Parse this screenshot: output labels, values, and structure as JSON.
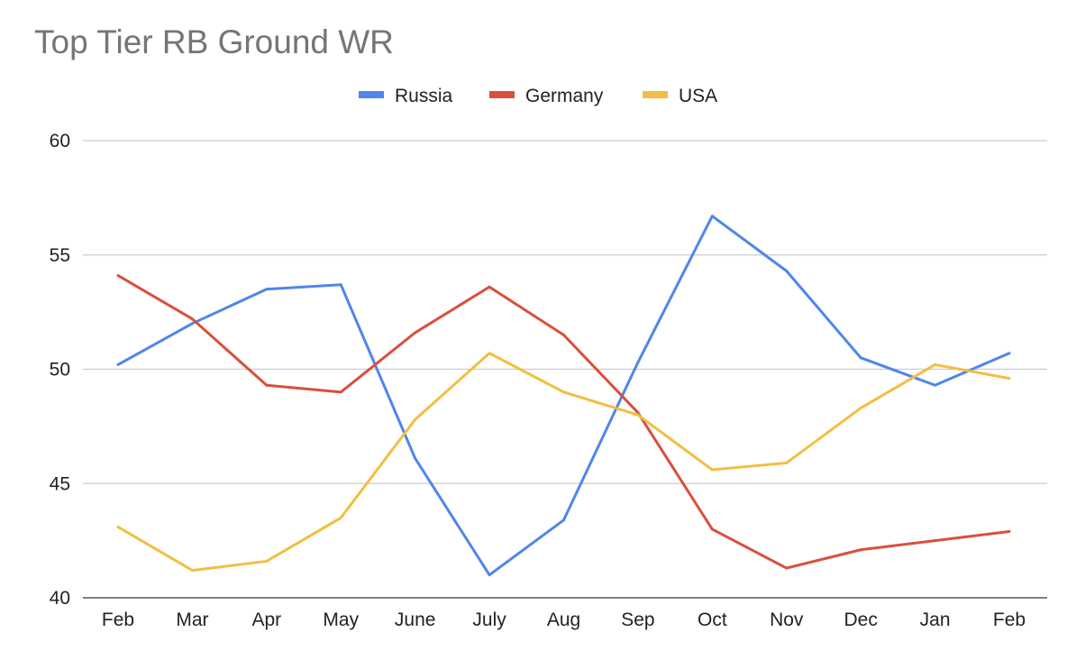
{
  "chart_data": {
    "type": "line",
    "title": "Top Tier RB Ground WR",
    "xlabel": "",
    "ylabel": "",
    "categories": [
      "Feb",
      "Mar",
      "Apr",
      "May",
      "June",
      "July",
      "Aug",
      "Sep",
      "Oct",
      "Nov",
      "Dec",
      "Jan",
      "Feb"
    ],
    "ylim": [
      40,
      60
    ],
    "yticks": [
      40,
      45,
      50,
      55,
      60
    ],
    "grid": true,
    "legend_position": "top",
    "series": [
      {
        "name": "Russia",
        "color": "#4f86ec",
        "values": [
          50.2,
          52.0,
          53.5,
          53.7,
          46.1,
          41.0,
          43.4,
          50.3,
          56.7,
          54.3,
          50.5,
          49.3,
          50.7
        ]
      },
      {
        "name": "Germany",
        "color": "#d94f3d",
        "values": [
          54.1,
          52.2,
          49.3,
          49.0,
          51.6,
          53.6,
          51.5,
          48.1,
          43.0,
          41.3,
          42.1,
          42.5,
          42.9
        ]
      },
      {
        "name": "USA",
        "color": "#f2be42",
        "values": [
          43.1,
          41.2,
          41.6,
          43.5,
          47.8,
          50.7,
          49.0,
          48.0,
          45.6,
          45.9,
          48.3,
          50.2,
          49.6
        ]
      }
    ]
  }
}
